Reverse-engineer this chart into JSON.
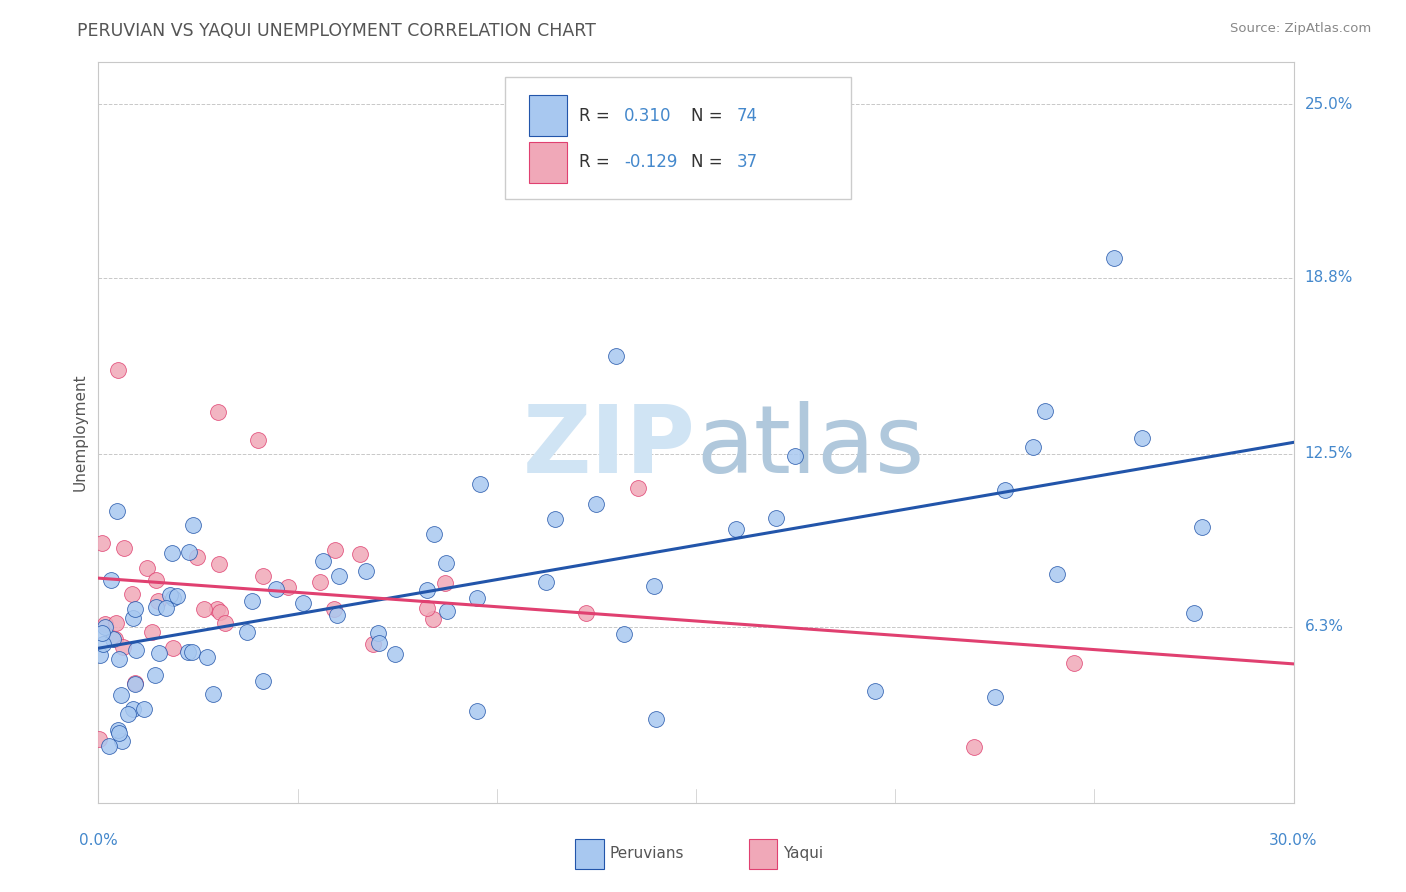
{
  "title": "PERUVIAN VS YAQUI UNEMPLOYMENT CORRELATION CHART",
  "source": "Source: ZipAtlas.com",
  "ylabel": "Unemployment",
  "ytick_labels": [
    "6.3%",
    "12.5%",
    "18.8%",
    "25.0%"
  ],
  "ytick_values": [
    0.063,
    0.125,
    0.188,
    0.25
  ],
  "xlim": [
    0.0,
    0.3
  ],
  "ylim": [
    0.0,
    0.265
  ],
  "peruvian_color": "#a8c8f0",
  "yaqui_color": "#f0a8b8",
  "peruvian_line_color": "#2255aa",
  "yaqui_line_color": "#e04070",
  "peruvian_r": 0.31,
  "peruvian_n": 74,
  "yaqui_r": -0.129,
  "yaqui_n": 37,
  "background_color": "#ffffff",
  "grid_color": "#c8c8c8",
  "title_color": "#555555",
  "axis_label_color": "#4488cc",
  "source_color": "#888888",
  "watermark_zip_color": "#d0e4f4",
  "watermark_atlas_color": "#b0c8dc"
}
